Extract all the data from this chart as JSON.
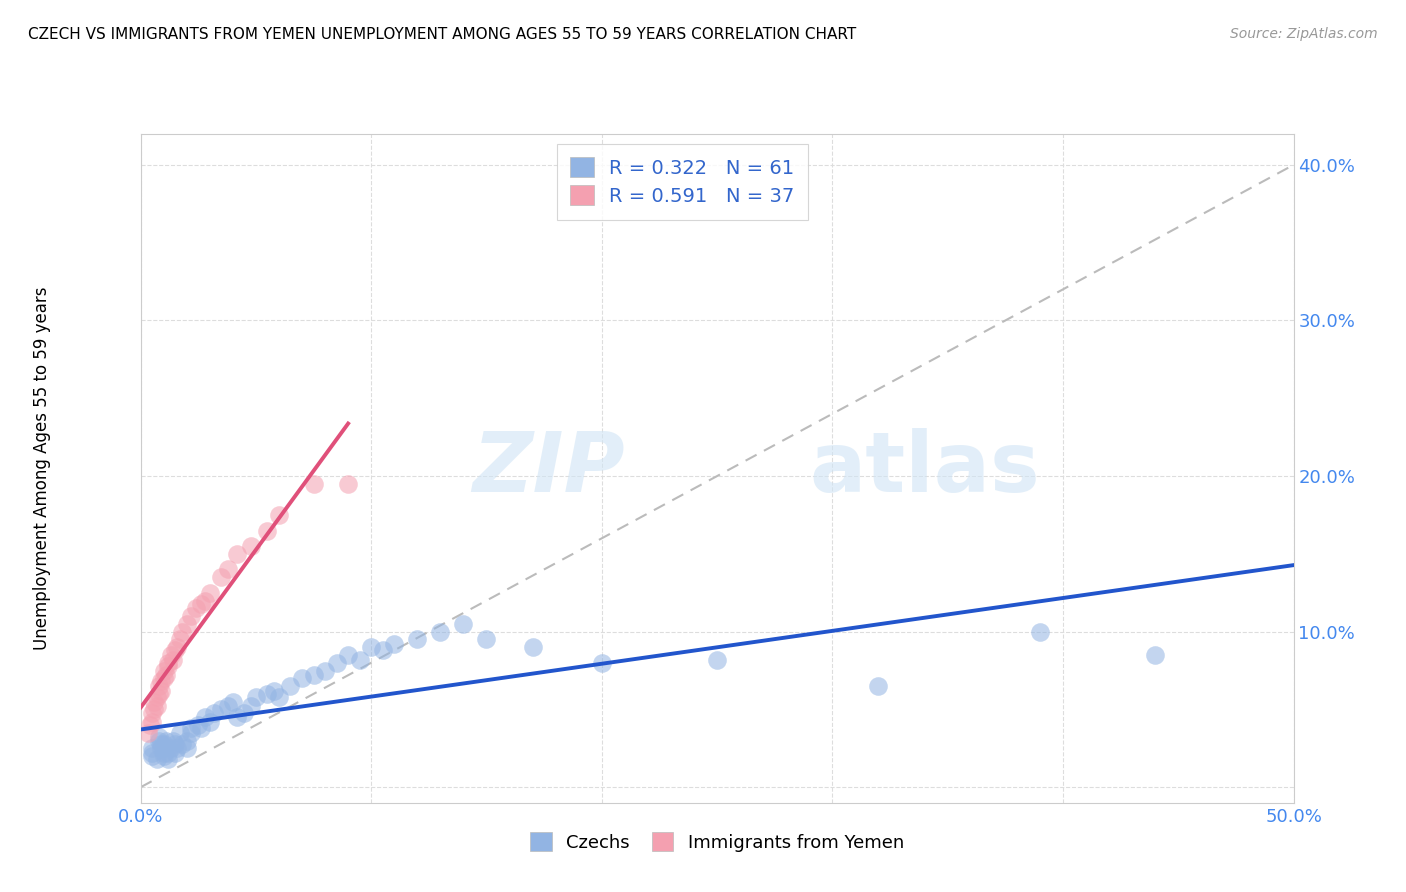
{
  "title": "CZECH VS IMMIGRANTS FROM YEMEN UNEMPLOYMENT AMONG AGES 55 TO 59 YEARS CORRELATION CHART",
  "source": "Source: ZipAtlas.com",
  "ylabel": "Unemployment Among Ages 55 to 59 years",
  "xlim": [
    0.0,
    0.5
  ],
  "ylim": [
    -0.01,
    0.42
  ],
  "x_ticks": [
    0.0,
    0.1,
    0.2,
    0.3,
    0.4,
    0.5
  ],
  "y_ticks": [
    0.0,
    0.1,
    0.2,
    0.3,
    0.4
  ],
  "czech_color": "#92b4e3",
  "yemen_color": "#f4a0b0",
  "czech_line_color": "#2255cc",
  "yemen_line_color": "#e0507a",
  "trendline_dash_color": "#bbbbbb",
  "R_czech": 0.322,
  "N_czech": 61,
  "R_yemen": 0.591,
  "N_yemen": 37,
  "legend_label_czech": "Czechs",
  "legend_label_yemen": "Immigrants from Yemen",
  "watermark_zip": "ZIP",
  "watermark_atlas": "atlas",
  "tick_label_color": "#4488ee",
  "legend_text_color": "#3366cc",
  "czech_x": [
    0.005,
    0.005,
    0.005,
    0.007,
    0.008,
    0.008,
    0.009,
    0.009,
    0.01,
    0.01,
    0.01,
    0.01,
    0.011,
    0.012,
    0.012,
    0.013,
    0.014,
    0.015,
    0.015,
    0.016,
    0.017,
    0.018,
    0.02,
    0.02,
    0.022,
    0.022,
    0.025,
    0.026,
    0.028,
    0.03,
    0.032,
    0.035,
    0.038,
    0.04,
    0.042,
    0.045,
    0.048,
    0.05,
    0.055,
    0.058,
    0.06,
    0.065,
    0.07,
    0.075,
    0.08,
    0.085,
    0.09,
    0.095,
    0.1,
    0.105,
    0.11,
    0.12,
    0.13,
    0.14,
    0.15,
    0.17,
    0.2,
    0.25,
    0.32,
    0.39,
    0.44
  ],
  "czech_y": [
    0.02,
    0.022,
    0.025,
    0.018,
    0.03,
    0.032,
    0.025,
    0.028,
    0.02,
    0.022,
    0.025,
    0.028,
    0.03,
    0.018,
    0.022,
    0.025,
    0.03,
    0.022,
    0.028,
    0.025,
    0.035,
    0.028,
    0.03,
    0.025,
    0.035,
    0.038,
    0.04,
    0.038,
    0.045,
    0.042,
    0.048,
    0.05,
    0.052,
    0.055,
    0.045,
    0.048,
    0.052,
    0.058,
    0.06,
    0.062,
    0.058,
    0.065,
    0.07,
    0.072,
    0.075,
    0.08,
    0.085,
    0.082,
    0.09,
    0.088,
    0.092,
    0.095,
    0.1,
    0.105,
    0.095,
    0.09,
    0.08,
    0.082,
    0.065,
    0.1,
    0.085
  ],
  "yemen_x": [
    0.003,
    0.004,
    0.005,
    0.005,
    0.006,
    0.006,
    0.007,
    0.007,
    0.008,
    0.008,
    0.009,
    0.009,
    0.01,
    0.01,
    0.011,
    0.012,
    0.012,
    0.013,
    0.014,
    0.015,
    0.016,
    0.017,
    0.018,
    0.02,
    0.022,
    0.024,
    0.026,
    0.028,
    0.03,
    0.035,
    0.038,
    0.042,
    0.048,
    0.055,
    0.06,
    0.075,
    0.09
  ],
  "yemen_y": [
    0.035,
    0.04,
    0.042,
    0.048,
    0.05,
    0.055,
    0.052,
    0.058,
    0.06,
    0.065,
    0.062,
    0.068,
    0.07,
    0.075,
    0.072,
    0.078,
    0.08,
    0.085,
    0.082,
    0.088,
    0.09,
    0.095,
    0.1,
    0.105,
    0.11,
    0.115,
    0.118,
    0.12,
    0.125,
    0.135,
    0.14,
    0.15,
    0.155,
    0.165,
    0.175,
    0.195,
    0.195
  ],
  "background_color": "#ffffff",
  "grid_color": "#dddddd"
}
